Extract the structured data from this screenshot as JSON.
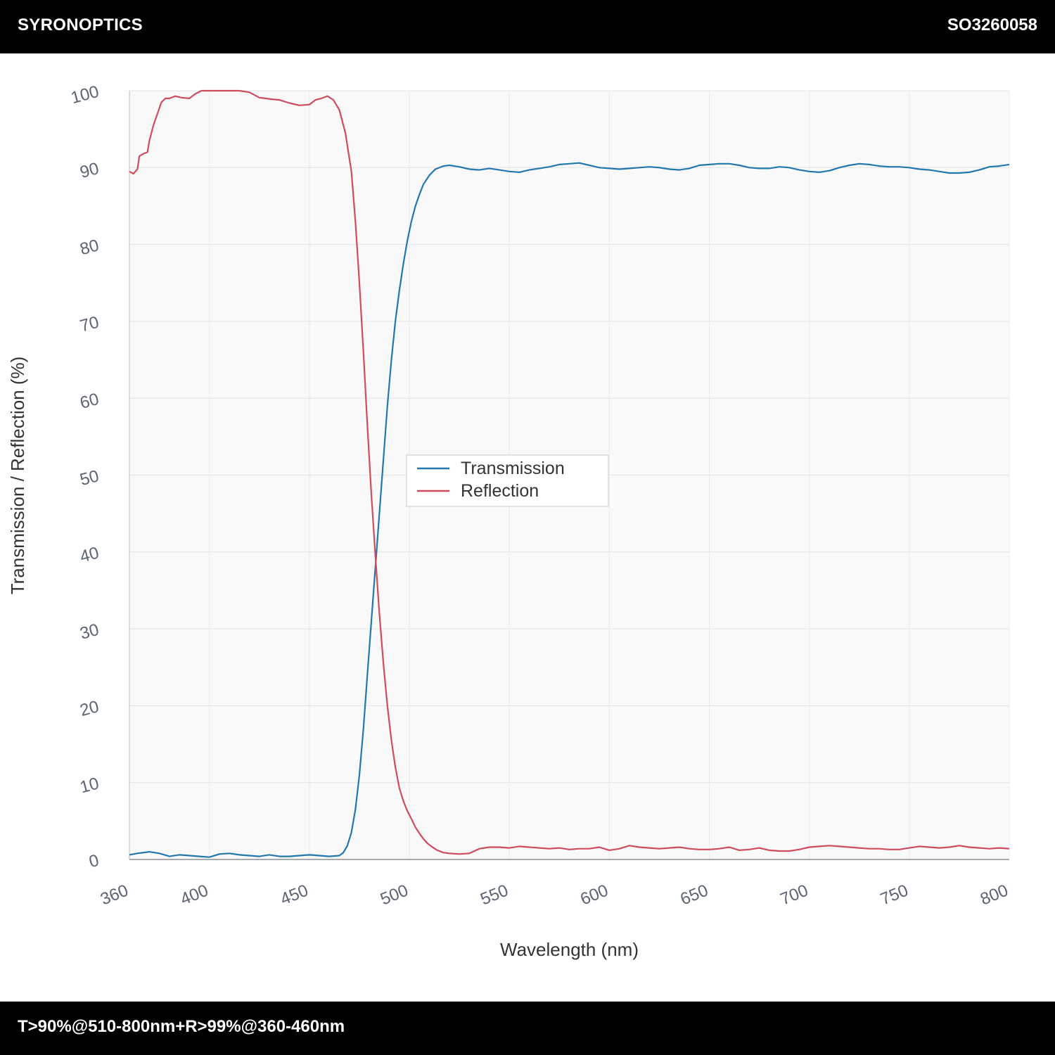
{
  "header": {
    "brand": "SYRONOPTICS",
    "part_number": "SO3260058"
  },
  "footer": {
    "spec": "T>90%@510-800nm+R>99%@360-460nm"
  },
  "colors": {
    "transmission": "#2377ad",
    "reflection": "#cf4b5e",
    "bars": "#000000"
  },
  "chart_data": {
    "type": "line",
    "title": "",
    "xlabel": "Wavelength (nm)",
    "ylabel": "Transmission / Reflection (%)",
    "xlim": [
      360,
      800
    ],
    "ylim": [
      0,
      100
    ],
    "xticks": [
      360,
      400,
      450,
      500,
      550,
      600,
      650,
      700,
      750,
      800
    ],
    "yticks": [
      0,
      10,
      20,
      30,
      40,
      50,
      60,
      70,
      80,
      90,
      100
    ],
    "grid": true,
    "legend_position": "center",
    "series": [
      {
        "name": "Transmission",
        "color": "#2377ad",
        "x": [
          360,
          364,
          370,
          375,
          380,
          385,
          390,
          395,
          400,
          405,
          410,
          415,
          420,
          425,
          430,
          435,
          440,
          445,
          450,
          455,
          460,
          465,
          467,
          469,
          471,
          473,
          475,
          477,
          479,
          481,
          483,
          485,
          487,
          489,
          491,
          493,
          495,
          497,
          499,
          501,
          503,
          505,
          507,
          510,
          513,
          517,
          520,
          525,
          530,
          535,
          540,
          545,
          550,
          555,
          560,
          565,
          570,
          575,
          580,
          585,
          590,
          595,
          600,
          605,
          610,
          615,
          620,
          625,
          630,
          635,
          640,
          645,
          650,
          655,
          660,
          665,
          670,
          675,
          680,
          685,
          690,
          695,
          700,
          705,
          710,
          715,
          720,
          725,
          730,
          735,
          740,
          745,
          750,
          755,
          760,
          765,
          770,
          775,
          780,
          785,
          790,
          795,
          800
        ],
        "values": [
          0.6,
          0.8,
          1.0,
          0.8,
          0.4,
          0.6,
          0.5,
          0.4,
          0.3,
          0.7,
          0.8,
          0.6,
          0.5,
          0.4,
          0.6,
          0.4,
          0.4,
          0.5,
          0.6,
          0.5,
          0.4,
          0.5,
          0.9,
          1.8,
          3.5,
          6.5,
          11,
          17,
          24,
          31,
          38,
          45,
          52,
          59,
          65,
          70,
          74,
          77.5,
          80.5,
          83,
          85,
          86.5,
          87.8,
          89,
          89.8,
          90.2,
          90.3,
          90.1,
          89.8,
          89.7,
          89.9,
          89.7,
          89.5,
          89.4,
          89.7,
          89.9,
          90.1,
          90.4,
          90.5,
          90.6,
          90.3,
          90.0,
          89.9,
          89.8,
          89.9,
          90.0,
          90.1,
          90.0,
          89.8,
          89.7,
          89.9,
          90.3,
          90.4,
          90.5,
          90.5,
          90.3,
          90.0,
          89.9,
          89.9,
          90.1,
          90.0,
          89.7,
          89.5,
          89.4,
          89.6,
          90.0,
          90.3,
          90.5,
          90.4,
          90.2,
          90.1,
          90.1,
          90.0,
          89.8,
          89.7,
          89.5,
          89.3,
          89.3,
          89.4,
          89.7,
          90.1,
          90.2,
          90.4
        ]
      },
      {
        "name": "Reflection",
        "color": "#cf4b5e",
        "x": [
          360,
          362,
          364,
          365,
          367,
          369,
          370,
          372,
          374,
          376,
          378,
          380,
          383,
          386,
          390,
          393,
          396,
          400,
          405,
          410,
          415,
          420,
          425,
          428,
          431,
          435,
          440,
          445,
          450,
          453,
          456,
          459,
          462,
          465,
          468,
          471,
          473,
          475,
          477,
          479,
          481,
          483,
          485,
          487,
          489,
          491,
          493,
          495,
          497,
          499,
          501,
          503,
          505,
          507,
          509,
          511,
          514,
          517,
          520,
          525,
          530,
          535,
          540,
          545,
          550,
          555,
          560,
          565,
          570,
          575,
          580,
          585,
          590,
          595,
          600,
          605,
          610,
          615,
          620,
          625,
          630,
          635,
          640,
          645,
          650,
          655,
          660,
          665,
          670,
          675,
          680,
          685,
          690,
          695,
          700,
          705,
          710,
          715,
          720,
          725,
          730,
          735,
          740,
          745,
          750,
          755,
          760,
          765,
          770,
          775,
          780,
          785,
          790,
          795,
          800
        ],
        "values": [
          89.5,
          89.2,
          89.8,
          91.5,
          91.8,
          92.0,
          93.5,
          95.5,
          97.0,
          98.5,
          99.0,
          99.0,
          99.3,
          99.1,
          99.0,
          99.6,
          100,
          100,
          100,
          100,
          100,
          99.8,
          99.1,
          99.0,
          98.9,
          98.8,
          98.4,
          98.1,
          98.2,
          98.8,
          99.0,
          99.3,
          98.8,
          97.5,
          94.5,
          89.5,
          83,
          75,
          66,
          56.5,
          47.5,
          39.5,
          32,
          25.5,
          20,
          15.5,
          12,
          9.3,
          7.6,
          6.3,
          5.3,
          4.2,
          3.4,
          2.7,
          2.1,
          1.7,
          1.2,
          0.9,
          0.8,
          0.7,
          0.8,
          1.4,
          1.6,
          1.6,
          1.5,
          1.7,
          1.6,
          1.5,
          1.4,
          1.5,
          1.3,
          1.4,
          1.4,
          1.6,
          1.2,
          1.4,
          1.8,
          1.6,
          1.5,
          1.4,
          1.5,
          1.6,
          1.4,
          1.3,
          1.3,
          1.4,
          1.6,
          1.2,
          1.3,
          1.5,
          1.2,
          1.1,
          1.1,
          1.3,
          1.6,
          1.7,
          1.8,
          1.7,
          1.6,
          1.5,
          1.4,
          1.4,
          1.3,
          1.3,
          1.5,
          1.7,
          1.6,
          1.5,
          1.6,
          1.8,
          1.6,
          1.5,
          1.4,
          1.5,
          1.4
        ]
      }
    ]
  }
}
